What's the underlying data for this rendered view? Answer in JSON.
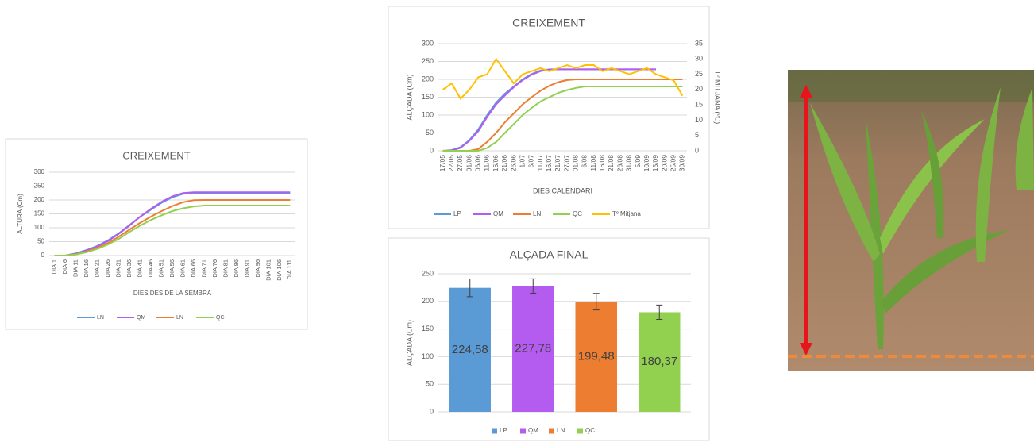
{
  "chart_data": [
    {
      "type": "line",
      "title": "CREIXEMENT",
      "y_label": "ALTURA (Cm)",
      "x_label": "DIES DES DE LA SEMBRA",
      "categories": [
        "DIA 1",
        "DIA 6",
        "DIA 11",
        "DIA 16",
        "DIA 21",
        "DIA 26",
        "DIA 31",
        "DIA 36",
        "DIA 41",
        "DIA 46",
        "DIA 51",
        "DIA 56",
        "DIA 61",
        "DIA 66",
        "DIA 71",
        "DIA 76",
        "DIA 81",
        "DIA 86",
        "DIA 91",
        "DIA 96",
        "DIA 101",
        "DIA 106",
        "DIA 111"
      ],
      "series": [
        {
          "name": "LN",
          "color": "#5b9bd5",
          "values": [
            0,
            0,
            8,
            20,
            35,
            55,
            80,
            110,
            140,
            165,
            190,
            210,
            222,
            225,
            225,
            225,
            225,
            225,
            225,
            225,
            225,
            225,
            225
          ]
        },
        {
          "name": "QM",
          "color": "#b45cf0",
          "values": [
            0,
            0,
            7,
            18,
            33,
            52,
            78,
            108,
            140,
            168,
            193,
            213,
            225,
            228,
            228,
            228,
            228,
            228,
            228,
            228,
            228,
            228,
            228
          ]
        },
        {
          "name": "LN",
          "color": "#ed7d31",
          "values": [
            0,
            0,
            5,
            15,
            28,
            45,
            68,
            93,
            118,
            140,
            160,
            178,
            192,
            199,
            200,
            200,
            200,
            200,
            200,
            200,
            200,
            200,
            200
          ]
        },
        {
          "name": "QC",
          "color": "#92d050",
          "values": [
            0,
            0,
            4,
            12,
            24,
            40,
            60,
            85,
            108,
            128,
            145,
            160,
            170,
            177,
            180,
            180,
            180,
            180,
            180,
            180,
            180,
            180,
            180
          ]
        }
      ],
      "ylim": [
        0,
        300
      ],
      "yticks": [
        0,
        50,
        100,
        150,
        200,
        250,
        300
      ],
      "grid": true
    },
    {
      "type": "line",
      "title": "CREIXEMENT",
      "y_label": "ALÇADA (Cm)",
      "y2_label": "Tº MITJANA (ºC)",
      "x_label": "DIES CALENDARI",
      "categories": [
        "17/05",
        "22/05",
        "27/05",
        "01/06",
        "06/06",
        "11/06",
        "16/06",
        "21/06",
        "26/06",
        "1/07",
        "6/07",
        "11/07",
        "16/07",
        "21/07",
        "27/07",
        "01/08",
        "6/08",
        "11/08",
        "16/08",
        "21/08",
        "26/08",
        "31/08",
        "5/09",
        "10/09",
        "15/09",
        "20/09",
        "25/09",
        "30/09"
      ],
      "series": [
        {
          "name": "LP",
          "color": "#5b9bd5",
          "values": [
            0,
            2,
            10,
            30,
            60,
            100,
            135,
            160,
            180,
            200,
            215,
            225,
            228,
            228,
            228,
            228,
            228,
            228,
            228,
            228,
            228,
            228,
            228,
            228,
            228,
            null,
            null,
            null
          ]
        },
        {
          "name": "QM",
          "color": "#b45cf0",
          "values": [
            0,
            1,
            8,
            28,
            55,
            95,
            130,
            155,
            178,
            198,
            213,
            223,
            227,
            228,
            228,
            228,
            228,
            228,
            228,
            228,
            228,
            228,
            228,
            228,
            228,
            null,
            null,
            null
          ]
        },
        {
          "name": "LN",
          "color": "#ed7d31",
          "values": [
            0,
            0,
            0,
            0,
            5,
            25,
            50,
            80,
            105,
            130,
            150,
            168,
            182,
            192,
            198,
            200,
            200,
            200,
            200,
            200,
            200,
            200,
            200,
            200,
            200,
            200,
            200,
            200
          ]
        },
        {
          "name": "QC",
          "color": "#92d050",
          "values": [
            0,
            0,
            0,
            0,
            0,
            8,
            25,
            50,
            75,
            100,
            120,
            138,
            150,
            162,
            170,
            176,
            180,
            180,
            180,
            180,
            180,
            180,
            180,
            180,
            180,
            180,
            180,
            180
          ]
        },
        {
          "name": "Tº Mitjana",
          "color": "#ffc000",
          "axis": "y2",
          "values": [
            20,
            22,
            17,
            20,
            24,
            25,
            30,
            26,
            22,
            25,
            26,
            27,
            26,
            27,
            28,
            27,
            28,
            28,
            26,
            27,
            26,
            25,
            26,
            27,
            25,
            24,
            23,
            18
          ]
        }
      ],
      "ylim": [
        0,
        300
      ],
      "yticks": [
        0,
        50,
        100,
        150,
        200,
        250,
        300
      ],
      "y2lim": [
        0,
        35
      ],
      "y2ticks": [
        0,
        5,
        10,
        15,
        20,
        25,
        30,
        35
      ],
      "grid": true
    },
    {
      "type": "bar",
      "title": "ALÇADA FINAL",
      "y_label": "ALÇADA (Cm)",
      "categories": [
        "LP",
        "QM",
        "LN",
        "QC"
      ],
      "colors": [
        "#5b9bd5",
        "#b45cf0",
        "#ed7d31",
        "#92d050"
      ],
      "values": [
        224.58,
        227.78,
        199.48,
        180.37
      ],
      "value_labels": [
        "224,58",
        "227,78",
        "199,48",
        "180,37"
      ],
      "errors": [
        16,
        13,
        15,
        13
      ],
      "ylim": [
        0,
        250
      ],
      "yticks": [
        0,
        50,
        100,
        150,
        200,
        250
      ],
      "grid": true
    }
  ]
}
